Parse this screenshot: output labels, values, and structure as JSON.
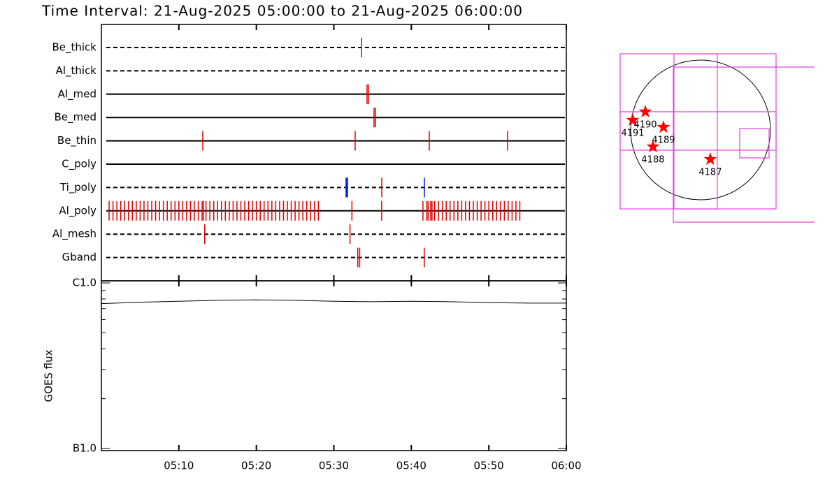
{
  "chart_data": [
    {
      "type": "timeline",
      "title": "Time Interval: 21-Aug-2025 05:00:00 to 21-Aug-2025 06:00:00",
      "rows": [
        {
          "name": "Be_thick",
          "line": "dashed",
          "groups": [
            {
              "color": "#e00000",
              "times": [
                "05:33:35"
              ]
            }
          ]
        },
        {
          "name": "Al_thick",
          "line": "dashed",
          "groups": []
        },
        {
          "name": "Al_med",
          "line": "solid",
          "groups": [
            {
              "color": "#e00000",
              "times": [
                "05:34:17",
                "05:34:28"
              ]
            }
          ]
        },
        {
          "name": "Be_med",
          "line": "solid",
          "groups": [
            {
              "color": "#e00000",
              "times": [
                "05:35:11",
                "05:35:22"
              ]
            }
          ]
        },
        {
          "name": "Be_thin",
          "line": "solid",
          "groups": [
            {
              "color": "#e00000",
              "times": [
                "05:13:05",
                "05:32:45",
                "05:42:19",
                "05:52:25"
              ]
            }
          ]
        },
        {
          "name": "C_poly",
          "line": "solid",
          "groups": []
        },
        {
          "name": "Ti_poly",
          "line": "dashed",
          "groups": [
            {
              "color": "#e00000",
              "times": [
                "05:36:11"
              ]
            },
            {
              "color": "#0020e0",
              "times": [
                "05:31:40",
                "05:41:41"
              ]
            }
          ]
        },
        {
          "name": "Al_poly",
          "line": "solid",
          "groups": [
            {
              "color": "#e00000",
              "times": [
                "05:01:00",
                "05:01:30",
                "05:02:00",
                "05:02:30",
                "05:03:00",
                "05:03:30",
                "05:04:00",
                "05:04:30",
                "05:05:00",
                "05:05:30",
                "05:06:00",
                "05:06:30",
                "05:07:00",
                "05:07:30",
                "05:08:00",
                "05:08:30",
                "05:09:00",
                "05:09:30",
                "05:10:00",
                "05:10:30",
                "05:11:00",
                "05:11:30",
                "05:12:00",
                "05:12:30",
                "05:13:00",
                "05:13:10",
                "05:13:30",
                "05:14:00",
                "05:14:30",
                "05:15:00",
                "05:15:30",
                "05:16:00",
                "05:16:30",
                "05:17:00",
                "05:17:30",
                "05:18:00",
                "05:18:30",
                "05:19:00",
                "05:19:30",
                "05:20:00",
                "05:20:30",
                "05:21:00",
                "05:21:30",
                "05:22:00",
                "05:22:30",
                "05:23:00",
                "05:23:30",
                "05:24:00",
                "05:24:30",
                "05:25:00",
                "05:25:30",
                "05:26:00",
                "05:26:30",
                "05:27:00",
                "05:27:30",
                "05:28:00",
                "05:32:20",
                "05:36:10",
                "05:41:30",
                "05:42:00",
                "05:42:10",
                "05:42:30",
                "05:42:40",
                "05:43:00",
                "05:43:30",
                "05:44:00",
                "05:44:30",
                "05:45:00",
                "05:45:30",
                "05:46:00",
                "05:46:30",
                "05:47:00",
                "05:47:30",
                "05:48:00",
                "05:48:30",
                "05:49:00",
                "05:49:30",
                "05:50:00",
                "05:50:30",
                "05:51:00",
                "05:51:30",
                "05:52:00",
                "05:52:30",
                "05:53:00",
                "05:53:30",
                "05:54:00"
              ]
            }
          ]
        },
        {
          "name": "Al_mesh",
          "line": "dashed",
          "groups": [
            {
              "color": "#e00000",
              "times": [
                "05:13:20",
                "05:32:05"
              ]
            }
          ]
        },
        {
          "name": "Gband",
          "line": "dashed",
          "groups": [
            {
              "color": "#e00000",
              "times": [
                "05:33:05",
                "05:33:20",
                "05:41:40"
              ]
            }
          ]
        }
      ]
    },
    {
      "type": "line",
      "ylabel": "GOES flux",
      "log": true,
      "color": "#000000",
      "xlim": [
        "05:00",
        "06:00"
      ],
      "xticks": [
        "05:10",
        "05:20",
        "05:30",
        "05:40",
        "05:50",
        "06:00"
      ],
      "ylim": [
        1e-07,
        1e-06
      ],
      "yticks": [
        {
          "value": 1e-06,
          "label": "C1.0"
        },
        {
          "value": 1e-07,
          "label": "B1.0"
        }
      ],
      "yminor": [
        2e-07,
        3e-07,
        4e-07,
        5e-07,
        6e-07,
        7e-07,
        8e-07,
        9e-07
      ],
      "x": [
        "05:00",
        "05:05",
        "05:10",
        "05:15",
        "05:20",
        "05:25",
        "05:30",
        "05:35",
        "05:40",
        "05:45",
        "05:50",
        "05:55",
        "06:00"
      ],
      "values": [
        7.5e-07,
        7.65e-07,
        7.75e-07,
        7.85e-07,
        7.9e-07,
        7.85e-07,
        7.75e-07,
        7.7e-07,
        7.75e-07,
        7.7e-07,
        7.6e-07,
        7.55e-07,
        7.55e-07
      ]
    },
    {
      "type": "map",
      "xlim": [
        -1171,
        1565
      ],
      "ylim": [
        -1267,
        1075
      ],
      "radius": 960,
      "box_color": "#e040e0",
      "boxes": [
        {
          "x": [
            -1104,
            1037
          ],
          "y": [
            -1085,
            1046
          ]
        },
        {
          "x": [
            -1104,
            1037
          ],
          "y": [
            -278,
            250
          ]
        },
        {
          "x": [
            -365,
            230
          ],
          "y": [
            -1085,
            1046
          ]
        },
        {
          "x": [
            -374,
            2861
          ],
          "y": [
            -1267,
            864
          ]
        },
        {
          "x": [
            538,
            941
          ],
          "y": [
            -384,
            19
          ]
        }
      ],
      "point_color": "#ff0000",
      "labels": [
        "4191",
        "4190",
        "4189",
        "4188",
        "4187"
      ],
      "x": [
        -931,
        -758,
        -509,
        -653,
        134
      ],
      "y": [
        134,
        250,
        38,
        -230,
        -403
      ]
    }
  ]
}
